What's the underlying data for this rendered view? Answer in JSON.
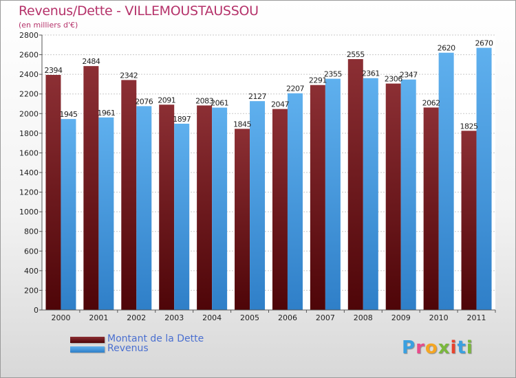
{
  "chart_data": {
    "type": "bar",
    "title": "Revenus/Dette - VILLEMOUSTAUSSOU",
    "subtitle": "(en milliers d'€)",
    "categories": [
      "2000",
      "2001",
      "2002",
      "2003",
      "2004",
      "2005",
      "2006",
      "2007",
      "2008",
      "2009",
      "2010",
      "2011"
    ],
    "series": [
      {
        "name": "Montant de la Dette",
        "values": [
          2394,
          2484,
          2342,
          2091,
          2083,
          1845,
          2047,
          2291,
          2555,
          2306,
          2062,
          1825
        ],
        "color": "#7a1e24"
      },
      {
        "name": "Revenus",
        "values": [
          1945,
          1961,
          2076,
          1897,
          2061,
          2127,
          2207,
          2355,
          2361,
          2347,
          2620,
          2670
        ],
        "color": "#4aa2e6"
      }
    ],
    "ylim": [
      0,
      2800
    ],
    "yticks": [
      0,
      200,
      400,
      600,
      800,
      1000,
      1200,
      1400,
      1600,
      1800,
      2000,
      2200,
      2400,
      2600,
      2800
    ],
    "grid": true,
    "legend_position": "bottom-left"
  },
  "branding": {
    "logo_text": "Proxiti"
  }
}
